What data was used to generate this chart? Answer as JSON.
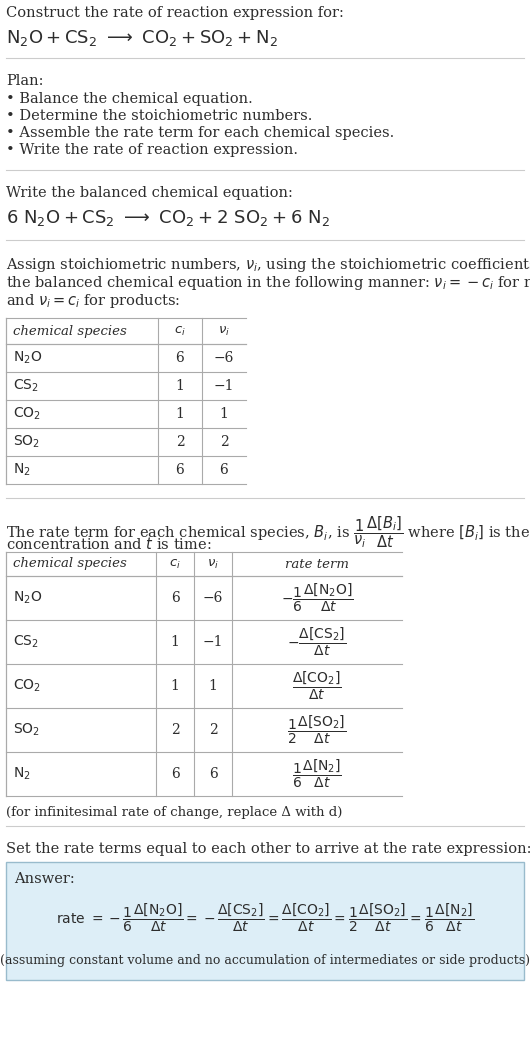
{
  "title_text": "Construct the rate of reaction expression for:",
  "plan_header": "Plan:",
  "plan_items": [
    "• Balance the chemical equation.",
    "• Determine the stoichiometric numbers.",
    "• Assemble the rate term for each chemical species.",
    "• Write the rate of reaction expression."
  ],
  "balanced_header": "Write the balanced chemical equation:",
  "stoich_intro_lines": [
    "Assign stoichiometric numbers, $\\nu_i$, using the stoichiometric coefficients, $c_i$, from",
    "the balanced chemical equation in the following manner: $\\nu_i = -c_i$ for reactants",
    "and $\\nu_i = c_i$ for products:"
  ],
  "table1_species": [
    "$\\mathrm{N_2O}$",
    "$\\mathrm{CS_2}$",
    "$\\mathrm{CO_2}$",
    "$\\mathrm{SO_2}$",
    "$\\mathrm{N_2}$"
  ],
  "table1_ci": [
    "6",
    "1",
    "1",
    "2",
    "6"
  ],
  "table1_ni": [
    "−6",
    "−1",
    "1",
    "2",
    "6"
  ],
  "rate_intro_line1": "The rate term for each chemical species, $B_i$, is $\\dfrac{1}{\\nu_i}\\dfrac{\\Delta[B_i]}{\\Delta t}$ where $[B_i]$ is the amount",
  "rate_intro_line2": "concentration and $t$ is time:",
  "table2_rate_terms": [
    "$-\\dfrac{1}{6}\\dfrac{\\Delta[\\mathrm{N_2O}]}{\\Delta t}$",
    "$-\\dfrac{\\Delta[\\mathrm{CS_2}]}{\\Delta t}$",
    "$\\dfrac{\\Delta[\\mathrm{CO_2}]}{\\Delta t}$",
    "$\\dfrac{1}{2}\\dfrac{\\Delta[\\mathrm{SO_2}]}{\\Delta t}$",
    "$\\dfrac{1}{6}\\dfrac{\\Delta[\\mathrm{N_2}]}{\\Delta t}$"
  ],
  "infinitesimal_note": "(for infinitesimal rate of change, replace Δ with d)",
  "set_equal_text": "Set the rate terms equal to each other to arrive at the rate expression:",
  "answer_label": "Answer:",
  "assuming_note": "(assuming constant volume and no accumulation of intermediates or side products)",
  "bg_color": "#ffffff",
  "text_color": "#2d2d2d",
  "table_border_color": "#aaaaaa",
  "answer_bg_color": "#ddeef7",
  "answer_border_color": "#99bbcc",
  "separator_color": "#cccccc",
  "lmargin": 6,
  "font_size_title": 10.5,
  "font_size_body": 10.5,
  "font_size_small": 9.5,
  "font_size_chem": 12.0,
  "font_size_table": 10.0
}
